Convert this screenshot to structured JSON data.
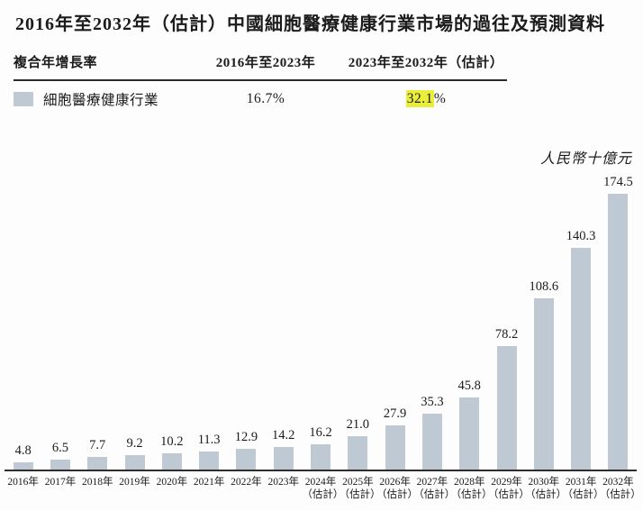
{
  "title": "2016年至2032年（估計）中國細胞醫療健康行業市場的過往及預測資料",
  "cagr_table": {
    "header": {
      "col1": "複合年增長率",
      "col2": "2016年至2023年",
      "col3": "2023年至2032年（估計）"
    },
    "row": {
      "label": "細胞醫療健康行業",
      "period1_value": "16.7%",
      "period2_value": "32.1",
      "period2_suffix": "%"
    }
  },
  "unit_label": "人民幣十億元",
  "colors": {
    "bar": "#bec9d3",
    "highlight": "#e9ee3a",
    "text": "#1b1b1b",
    "axis": "#2e2e2e"
  },
  "chart_data": {
    "type": "bar",
    "title": "2016年至2032年（估計）中國細胞醫療健康行業市場的過往及預測資料",
    "ylabel": "人民幣十億元",
    "xlabel": "",
    "ylim": [
      0,
      180
    ],
    "grid": false,
    "legend_position": "none",
    "series_name": "細胞醫療健康行業",
    "categories": [
      {
        "year": "2016年",
        "note": ""
      },
      {
        "year": "2017年",
        "note": ""
      },
      {
        "year": "2018年",
        "note": ""
      },
      {
        "year": "2019年",
        "note": ""
      },
      {
        "year": "2020年",
        "note": ""
      },
      {
        "year": "2021年",
        "note": ""
      },
      {
        "year": "2022年",
        "note": ""
      },
      {
        "year": "2023年",
        "note": ""
      },
      {
        "year": "2024年",
        "note": "（估計）"
      },
      {
        "year": "2025年",
        "note": "（估計）"
      },
      {
        "year": "2026年",
        "note": "（估計）"
      },
      {
        "year": "2027年",
        "note": "（估計）"
      },
      {
        "year": "2028年",
        "note": "（估計）"
      },
      {
        "year": "2029年",
        "note": "（估計）"
      },
      {
        "year": "2030年",
        "note": "（估計）"
      },
      {
        "year": "2031年",
        "note": "（估計）"
      },
      {
        "year": "2032年",
        "note": "（估計）"
      }
    ],
    "values": [
      4.8,
      6.5,
      7.7,
      9.2,
      10.2,
      11.3,
      12.9,
      14.2,
      16.2,
      21.0,
      27.9,
      35.3,
      45.8,
      78.2,
      108.6,
      140.3,
      174.5
    ]
  }
}
